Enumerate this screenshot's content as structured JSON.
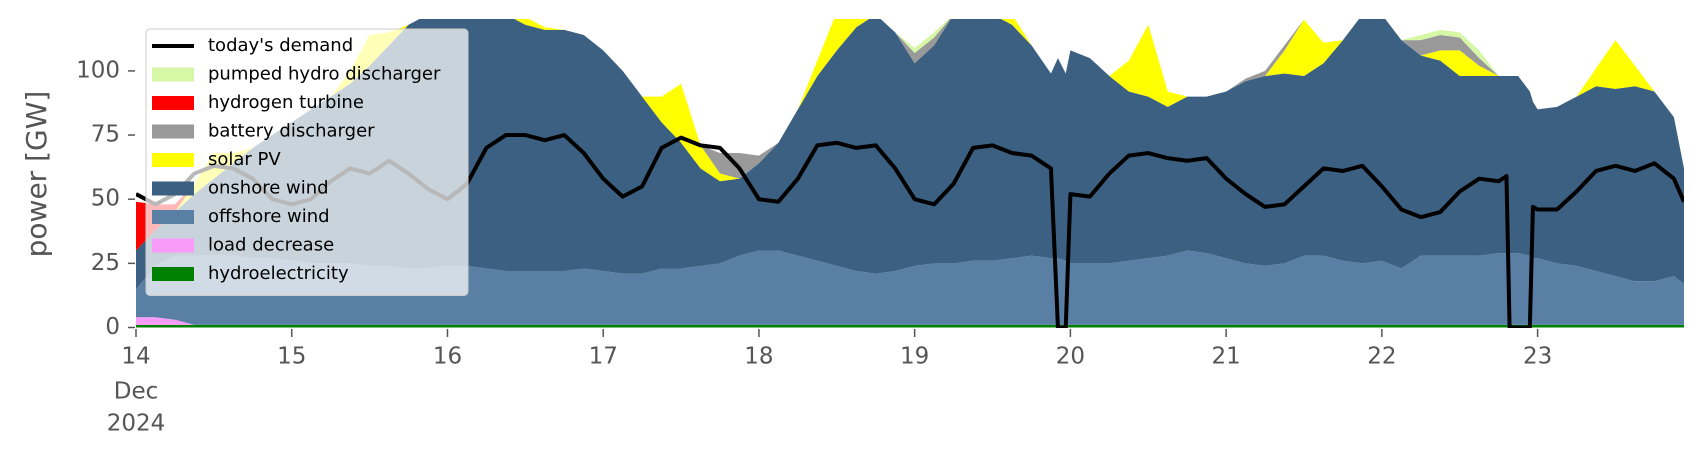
{
  "chart_data": {
    "type": "stacked_area",
    "ylabel": "power [GW]",
    "x": [
      14,
      14.125,
      14.25,
      14.375,
      14.5,
      14.625,
      14.75,
      14.875,
      15,
      15.125,
      15.25,
      15.375,
      15.5,
      15.625,
      15.75,
      15.875,
      16,
      16.125,
      16.25,
      16.375,
      16.5,
      16.625,
      16.75,
      16.875,
      17,
      17.125,
      17.25,
      17.375,
      17.5,
      17.625,
      17.75,
      17.875,
      18,
      18.125,
      18.25,
      18.375,
      18.5,
      18.625,
      18.75,
      18.875,
      19,
      19.125,
      19.25,
      19.375,
      19.5,
      19.625,
      19.75,
      19.875,
      19.92,
      19.97,
      20,
      20.125,
      20.25,
      20.375,
      20.5,
      20.625,
      20.75,
      20.875,
      21,
      21.125,
      21.25,
      21.375,
      21.5,
      21.625,
      21.75,
      21.875,
      22,
      22.125,
      22.25,
      22.375,
      22.5,
      22.625,
      22.75,
      22.8,
      22.82,
      22.875,
      22.95,
      22.97,
      23,
      23.125,
      23.25,
      23.375,
      23.5,
      23.625,
      23.75,
      23.875,
      23.94
    ],
    "xlim": [
      14,
      23.94
    ],
    "xticks": [
      14,
      15,
      16,
      17,
      18,
      19,
      20,
      21,
      22,
      23
    ],
    "xtick_month": "Dec",
    "xtick_year": "2024",
    "ylim": [
      0,
      120
    ],
    "yticks": [
      0,
      25,
      50,
      75,
      100
    ],
    "legend": "upper left",
    "series": [
      {
        "name": "hydroelectricity",
        "color": "#008000",
        "values": [
          1,
          1,
          1,
          1,
          1,
          1,
          1,
          1,
          1,
          1,
          1,
          1,
          1,
          1,
          1,
          1,
          1,
          1,
          1,
          1,
          1,
          1,
          1,
          1,
          1,
          1,
          1,
          1,
          1,
          1,
          1,
          1,
          1,
          1,
          1,
          1,
          1,
          1,
          1,
          1,
          1,
          1,
          1,
          1,
          1,
          1,
          1,
          1,
          1,
          1,
          1,
          1,
          1,
          1,
          1,
          1,
          1,
          1,
          1,
          1,
          1,
          1,
          1,
          1,
          1,
          1,
          1,
          1,
          1,
          1,
          1,
          1,
          1,
          1,
          1,
          1,
          1,
          1,
          1,
          1,
          1,
          1,
          1,
          1,
          1,
          1,
          1
        ]
      },
      {
        "name": "load decrease",
        "color": "#f99cf9",
        "values": [
          3,
          3,
          2,
          0,
          0,
          0,
          0,
          0,
          0,
          0,
          0,
          0,
          0,
          0,
          0,
          0,
          0,
          0,
          0,
          0,
          0,
          0,
          0,
          0,
          0,
          0,
          0,
          0,
          0,
          0,
          0,
          0,
          0,
          0,
          0,
          0,
          0,
          0,
          0,
          0,
          0,
          0,
          0,
          0,
          0,
          0,
          0,
          0,
          0,
          0,
          0,
          0,
          0,
          0,
          0,
          0,
          0,
          0,
          0,
          0,
          0,
          0,
          0,
          0,
          0,
          0,
          0,
          0,
          0,
          0,
          0,
          0,
          0,
          0,
          0,
          0,
          0,
          0,
          0,
          0,
          0,
          0,
          0,
          0,
          0,
          0,
          0
        ]
      },
      {
        "name": "offshore wind",
        "color": "#5a7fa4",
        "values": [
          11,
          20,
          25,
          27,
          27,
          27,
          26,
          26,
          25,
          24,
          24,
          24,
          23,
          23,
          22,
          22,
          23,
          23,
          22,
          21,
          21,
          21,
          21,
          22,
          21,
          20,
          20,
          22,
          22,
          23,
          24,
          27,
          29,
          29,
          27,
          25,
          23,
          21,
          20,
          21,
          23,
          24,
          24,
          25,
          25,
          26,
          27,
          26,
          26,
          25,
          24,
          24,
          24,
          25,
          26,
          27,
          29,
          28,
          26,
          24,
          23,
          24,
          27,
          27,
          25,
          24,
          25,
          22,
          27,
          27,
          27,
          27,
          28,
          28,
          28,
          28,
          27,
          26,
          26,
          24,
          23,
          21,
          19,
          17,
          17,
          19,
          16
        ]
      },
      {
        "name": "onshore wind",
        "color": "#3b6081",
        "values": [
          15,
          14,
          17,
          24,
          30,
          36,
          43,
          48,
          54,
          60,
          65,
          70,
          78,
          86,
          95,
          99,
          101,
          101,
          101,
          100,
          96,
          94,
          94,
          91,
          86,
          79,
          69,
          57,
          49,
          38,
          32,
          30,
          34,
          42,
          57,
          72,
          84,
          95,
          101,
          93,
          79,
          85,
          97,
          99,
          96,
          91,
          82,
          72,
          78,
          73,
          83,
          80,
          73,
          66,
          63,
          58,
          60,
          61,
          65,
          71,
          74,
          74,
          70,
          75,
          86,
          97,
          96,
          89,
          78,
          76,
          70,
          70,
          69,
          69,
          69,
          69,
          64,
          61,
          58,
          61,
          66,
          72,
          73,
          76,
          74,
          62,
          45
        ]
      },
      {
        "name": "solar PV",
        "color": "#ffff00",
        "values": [
          0,
          0,
          0,
          4,
          10,
          4,
          0,
          0,
          0,
          0,
          0,
          5,
          12,
          5,
          0,
          0,
          0,
          0,
          0,
          1,
          3,
          1,
          0,
          0,
          0,
          0,
          0,
          10,
          23,
          9,
          3,
          0,
          0,
          0,
          0,
          6,
          15,
          6,
          0,
          0,
          0,
          0,
          0,
          4,
          10,
          4,
          0,
          0,
          0,
          0,
          0,
          0,
          0,
          12,
          28,
          6,
          0,
          0,
          0,
          0,
          0,
          9,
          22,
          8,
          0,
          0,
          0,
          0,
          0,
          4,
          10,
          4,
          0,
          0,
          0,
          0,
          0,
          0,
          0,
          0,
          0,
          7,
          19,
          8,
          0,
          0,
          0
        ]
      },
      {
        "name": "battery discharger",
        "color": "#999999",
        "values": [
          0,
          0,
          0,
          0,
          0,
          0,
          0,
          0,
          0,
          0,
          0,
          0,
          0,
          0,
          0,
          0,
          0,
          0,
          0,
          0,
          0,
          0,
          0,
          0,
          0,
          0,
          0,
          0,
          0,
          0,
          8,
          10,
          3,
          0,
          0,
          0,
          0,
          0,
          0,
          0,
          4,
          3,
          0,
          0,
          0,
          0,
          0,
          0,
          0,
          0,
          0,
          0,
          0,
          0,
          0,
          0,
          0,
          0,
          0,
          1,
          2,
          2,
          0,
          0,
          0,
          0,
          0,
          0,
          6,
          6,
          5,
          3,
          0,
          0,
          0,
          0,
          0,
          0,
          0,
          0,
          0,
          0,
          0,
          0,
          0,
          0,
          0
        ]
      },
      {
        "name": "hydrogen turbine",
        "color": "#ff0000",
        "values": [
          19,
          10,
          3,
          0,
          0,
          0,
          0,
          0,
          0,
          0,
          0,
          0,
          0,
          0,
          0,
          0,
          0,
          0,
          0,
          0,
          0,
          0,
          0,
          0,
          0,
          0,
          0,
          0,
          0,
          0,
          0,
          0,
          0,
          0,
          0,
          0,
          0,
          0,
          0,
          0,
          0,
          0,
          0,
          0,
          0,
          0,
          0,
          0,
          0,
          0,
          0,
          0,
          0,
          0,
          0,
          0,
          0,
          0,
          0,
          0,
          0,
          0,
          0,
          0,
          0,
          0,
          0,
          0,
          0,
          0,
          0,
          0,
          0,
          0,
          0,
          0,
          0,
          0,
          0,
          0,
          0,
          0,
          0,
          0,
          0,
          0,
          0
        ]
      },
      {
        "name": "pumped hydro discharger",
        "color": "#d5f7a6",
        "values": [
          0,
          0,
          0,
          0,
          0,
          0,
          0,
          0,
          0,
          0,
          0,
          0,
          0,
          0,
          0,
          0,
          0,
          0,
          0,
          0,
          0,
          0,
          0,
          0,
          0,
          0,
          0,
          0,
          0,
          0,
          0,
          0,
          0,
          0,
          0,
          0,
          0,
          0,
          0,
          0,
          2,
          2,
          0,
          0,
          0,
          0,
          0,
          0,
          0,
          0,
          0,
          0,
          0,
          0,
          0,
          0,
          0,
          0,
          0,
          0,
          0,
          0,
          0,
          0,
          0,
          0,
          0,
          0,
          2,
          2,
          2,
          3,
          0,
          0,
          0,
          0,
          0,
          0,
          0,
          0,
          0,
          0,
          0,
          0,
          0,
          0,
          0
        ]
      }
    ],
    "line": {
      "name": "today's demand",
      "color": "#000000",
      "values": [
        52,
        48,
        52,
        60,
        63,
        62,
        58,
        50,
        48,
        50,
        57,
        62,
        60,
        65,
        60,
        54,
        50,
        56,
        70,
        75,
        75,
        73,
        75,
        68,
        58,
        51,
        55,
        70,
        74,
        71,
        70,
        62,
        50,
        49,
        58,
        71,
        72,
        70,
        71,
        62,
        50,
        48,
        56,
        70,
        71,
        68,
        67,
        62,
        0,
        0,
        52,
        51,
        60,
        67,
        68,
        66,
        65,
        66,
        58,
        52,
        47,
        48,
        55,
        62,
        61,
        63,
        55,
        46,
        43,
        45,
        53,
        58,
        57,
        59,
        0,
        0,
        0,
        47,
        46,
        46,
        53,
        61,
        63,
        61,
        64,
        58,
        49
      ]
    }
  }
}
